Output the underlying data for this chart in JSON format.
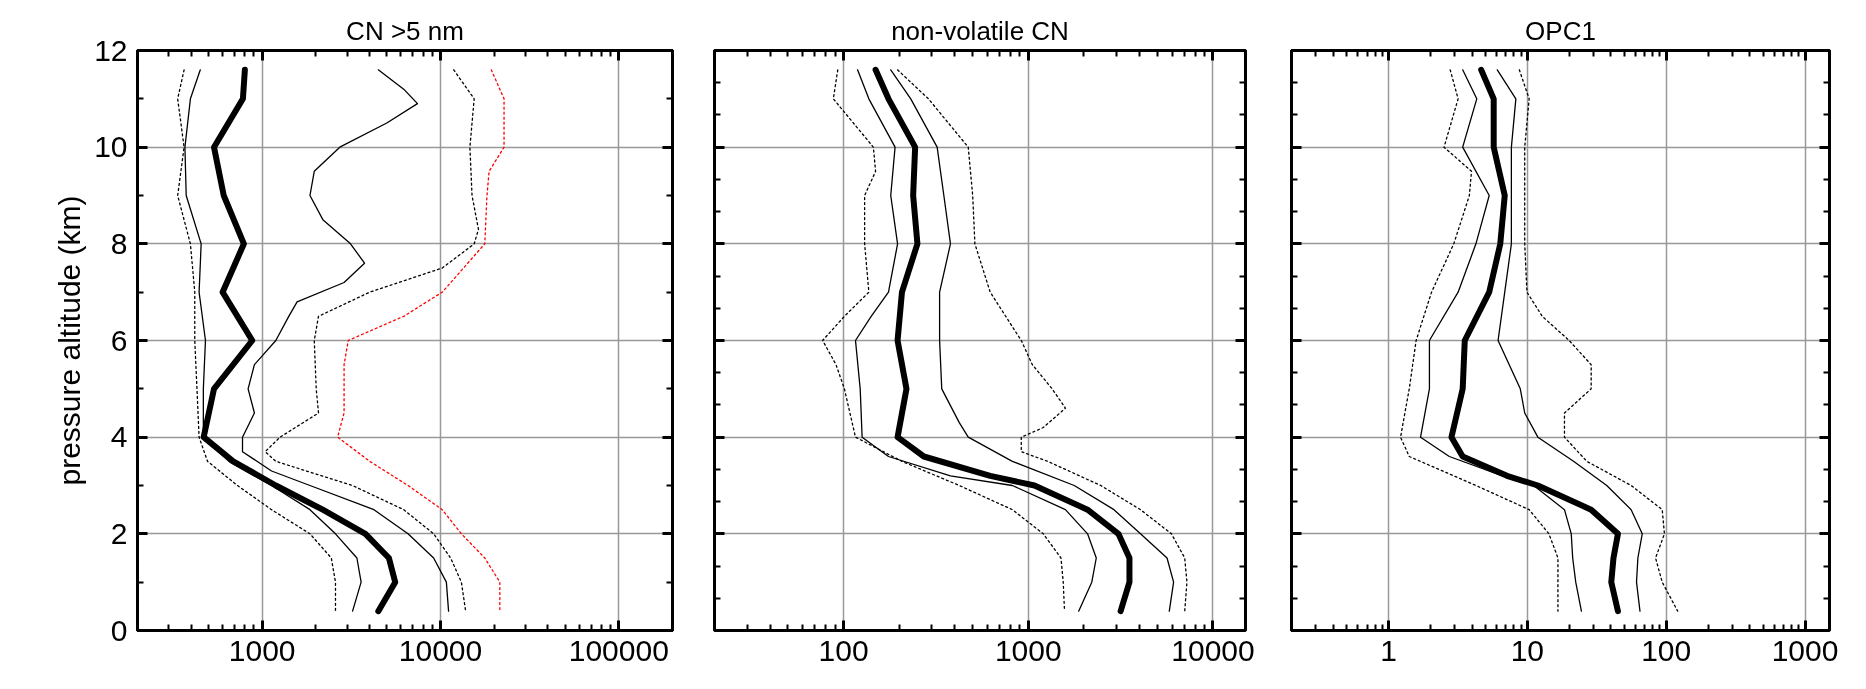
{
  "chart_data": [
    {
      "type": "line",
      "title": "CN >5 nm",
      "ylabel": "pressure altitude (km)",
      "log": "x",
      "xlim": [
        200,
        200000
      ],
      "ylim": [
        0,
        12
      ],
      "xticks": [
        1000,
        10000,
        100000
      ],
      "yticks": [
        0,
        {
          "value": 1,
          "label": null
        },
        2,
        {
          "value": 3,
          "label": null
        },
        4,
        {
          "value": 5,
          "label": null
        },
        6,
        {
          "value": 7,
          "label": null
        },
        8,
        {
          "value": 9,
          "label": null
        },
        10,
        {
          "value": 11,
          "label": null
        },
        12
      ],
      "grid": true,
      "series": [
        {
          "color": "#000000",
          "line_style": "dotted",
          "x": [
            365,
            336,
            365,
            336,
            396,
            419,
            419,
            431,
            443,
            494,
            727,
            1129,
            1854,
            2442,
            2578,
            2578
          ],
          "values": [
            11.6,
            11,
            10,
            9,
            8,
            7,
            6,
            5,
            4,
            3.5,
            3,
            2.5,
            2,
            1.5,
            1,
            0.4
          ]
        },
        {
          "color": "#000000",
          "line_style": "solid",
          "x": [
            450,
            396,
            369,
            375,
            455,
            443,
            481,
            468,
            468,
            651,
            1129,
            1854,
            2578,
            3399,
            3589,
            3214
          ],
          "values": [
            11.6,
            11,
            10,
            9,
            8,
            7,
            6,
            5,
            4,
            3.5,
            3,
            2.5,
            2,
            1.5,
            1,
            0.4
          ]
        },
        {
          "color": "#000000",
          "line_style": "solid",
          "x": [
            800,
            780,
            537,
            609,
            790,
            600,
            880,
            537,
            470,
            688,
            1193,
            2187,
            3793,
            5138,
            5575,
            4480
          ],
          "values": [
            11.6,
            11,
            10,
            9,
            8,
            7,
            6,
            5,
            4,
            3.5,
            3,
            2.5,
            2,
            1.5,
            1,
            0.4
          ]
        },
        {
          "color": "#000000",
          "line_style": "solid",
          "x": [
            4480,
            6220,
            7430,
            5000,
            2725,
            1960,
            1854,
            2190,
            3130,
            3750,
            2880,
            1570,
            1410,
            1193,
            905,
            834,
            905,
            776,
            776,
            1129,
            1854,
            4236,
            6577,
            9156,
            10790,
            11100
          ],
          "values": [
            11.6,
            11.2,
            10.9,
            10.5,
            10,
            9.5,
            9,
            8.5,
            8,
            7.6,
            7.2,
            6.8,
            6.5,
            6,
            5.5,
            5,
            4.5,
            4,
            3.7,
            3.3,
            3,
            2.5,
            2,
            1.5,
            1,
            0.4
          ]
        },
        {
          "color": "#000000",
          "line_style": "dotted",
          "x": [
            11860,
            15450,
            14620,
            15030,
            16330,
            15450,
            10230,
            4010,
            2070,
            1960,
            2010,
            2070,
            1260,
            1040,
            1193,
            3210,
            6220,
            9156,
            11400,
            13100,
            13840
          ],
          "values": [
            11.6,
            11,
            10,
            9,
            8.3,
            8,
            7.5,
            7,
            6.5,
            6,
            5,
            4.5,
            4,
            3.7,
            3.5,
            3,
            2.5,
            2,
            1.5,
            1,
            0.4
          ]
        },
        {
          "color": "#ff0000",
          "line_style": "dotted",
          "x": [
            19270,
            22720,
            22720,
            18740,
            18220,
            17720,
            10230,
            6220,
            3040,
            2880,
            2880,
            2880,
            2650,
            4010,
            6577,
            10230,
            13100,
            17720,
            21520,
            21520
          ],
          "values": [
            11.6,
            11,
            10,
            9.5,
            9,
            8,
            7,
            6.5,
            6,
            5.5,
            5,
            4.5,
            4,
            3.5,
            3,
            2.5,
            2,
            1.5,
            1,
            0.4
          ]
        }
      ]
    },
    {
      "type": "line",
      "title": "non-volatile CN",
      "log": "x",
      "xlim": [
        20,
        15000
      ],
      "ylim": [
        0,
        12
      ],
      "xticks": [
        100,
        1000,
        10000
      ],
      "yticks": [
        0,
        {
          "value": 0.67,
          "label": null
        },
        {
          "value": 1.33,
          "label": null
        },
        2,
        {
          "value": 2.67,
          "label": null
        },
        {
          "value": 3.33,
          "label": null
        },
        4,
        {
          "value": 4.67,
          "label": null
        },
        {
          "value": 5.33,
          "label": null
        },
        6,
        {
          "value": 6.67,
          "label": null
        },
        {
          "value": 7.33,
          "label": null
        },
        8,
        {
          "value": 8.67,
          "label": null
        },
        {
          "value": 9.33,
          "label": null
        },
        10,
        {
          "value": 10.67,
          "label": null
        },
        {
          "value": 11.33,
          "label": null
        },
        12
      ],
      "grid": true,
      "tick_labels": "x",
      "series": [
        {
          "color": "#000000",
          "line_style": "dotted",
          "x": [
            93,
            88,
            145,
            149,
            130,
            130,
            137,
            101,
            77,
            91,
            101,
            116,
            207,
            423,
            820,
            1206,
            1503,
            1546,
            1571
          ],
          "values": [
            11.6,
            11,
            10,
            9.5,
            9,
            8,
            7,
            6.5,
            6,
            5.5,
            5,
            4,
            3.5,
            3,
            2.5,
            2,
            1.5,
            1,
            0.4
          ]
        },
        {
          "color": "#000000",
          "line_style": "solid",
          "x": [
            119,
            137,
            190,
            180,
            196,
            175,
            141,
            116,
            123,
            126,
            175,
            379,
            820,
            1589,
            2094,
            2334,
            2207,
            1874
          ],
          "values": [
            11.6,
            11,
            10,
            9,
            8,
            7,
            6.5,
            6,
            5,
            4,
            3.6,
            3.2,
            3,
            2.5,
            2,
            1.5,
            1,
            0.4
          ]
        },
        {
          "color": "#000000",
          "line_style": "solid",
          "x": [
            149,
            175,
            244,
            238,
            251,
            207,
            196,
            219,
            196,
            272,
            622,
            1080,
            2094,
            3076,
            3530,
            3530,
            3162
          ],
          "values": [
            11.6,
            11,
            10,
            9,
            8,
            7,
            6,
            5,
            4,
            3.6,
            3.2,
            3,
            2.5,
            2,
            1.5,
            1,
            0.4
          ]
        },
        {
          "color": "#000000",
          "line_style": "solid",
          "x": [
            180,
            231,
            321,
            349,
            379,
            331,
            331,
            340,
            423,
            473,
            820,
            1773,
            2910,
            4050,
            5640,
            6120,
            5800
          ],
          "values": [
            11.6,
            11,
            10,
            9,
            8,
            7,
            6,
            5,
            4.3,
            4,
            3.5,
            3,
            2.5,
            2,
            1.5,
            1,
            0.4
          ]
        },
        {
          "color": "#000000",
          "line_style": "dotted",
          "x": [
            196,
            288,
            473,
            500,
            514,
            622,
            916,
            1052,
            1346,
            1589,
            1206,
            916,
            916,
            1274,
            2468,
            4050,
            5960,
            7030,
            7230,
            7030
          ],
          "values": [
            11.6,
            11,
            10,
            9,
            8,
            7,
            6,
            5.5,
            5,
            4.6,
            4.2,
            4,
            3.7,
            3.5,
            3,
            2.5,
            2,
            1.5,
            1,
            0.4
          ]
        }
      ]
    },
    {
      "type": "line",
      "title": "OPC1",
      "log": "x",
      "xlim": [
        0.2,
        1500
      ],
      "ylim": [
        0,
        12
      ],
      "xticks": [
        1,
        10,
        100,
        1000
      ],
      "yticks": [
        0,
        {
          "value": 0.67,
          "label": null
        },
        {
          "value": 1.33,
          "label": null
        },
        2,
        {
          "value": 2.67,
          "label": null
        },
        {
          "value": 3.33,
          "label": null
        },
        4,
        {
          "value": 4.67,
          "label": null
        },
        {
          "value": 5.33,
          "label": null
        },
        6,
        {
          "value": 6.67,
          "label": null
        },
        {
          "value": 7.33,
          "label": null
        },
        8,
        {
          "value": 8.67,
          "label": null
        },
        {
          "value": 9.33,
          "label": null
        },
        10,
        {
          "value": 10.67,
          "label": null
        },
        {
          "value": 11.33,
          "label": null
        },
        12
      ],
      "grid": true,
      "tick_labels": "x",
      "series": [
        {
          "color": "#000000",
          "line_style": "dotted",
          "x": [
            2.78,
            3.17,
            2.51,
            3.96,
            3.82,
            2.95,
            2.04,
            1.58,
            1.41,
            1.22,
            1.41,
            4.26,
            10.3,
            14.3,
            16.6,
            16.6,
            16.6
          ],
          "values": [
            11.6,
            11,
            10,
            9.5,
            9,
            8,
            7,
            6,
            5,
            4,
            3.6,
            3,
            2.5,
            2,
            1.5,
            1,
            0.4
          ]
        },
        {
          "color": "#000000",
          "line_style": "solid",
          "x": [
            3.42,
            4.32,
            3.42,
            5.31,
            4.26,
            3.17,
            1.97,
            1.97,
            1.7,
            2.74,
            6.62,
            11.1,
            18.5,
            20.7,
            21.2,
            22.3,
            24.5
          ],
          "values": [
            11.6,
            11,
            10,
            9,
            8,
            7,
            6,
            5,
            4,
            3.6,
            3.2,
            3,
            2.5,
            2,
            1.5,
            1,
            0.4
          ]
        },
        {
          "color": "#000000",
          "line_style": "solid",
          "x": [
            4.65,
            5.72,
            5.72,
            6.87,
            6.38,
            5.31,
            3.54,
            3.42,
            2.84,
            3.42,
            7.13,
            11.9,
            28.8,
            44.9,
            41.7,
            40.2,
            44.9
          ],
          "values": [
            11.6,
            11,
            10,
            9,
            8,
            7,
            6,
            5,
            4,
            3.6,
            3.2,
            3,
            2.5,
            2,
            1.5,
            1,
            0.4
          ]
        },
        {
          "color": "#000000",
          "line_style": "solid",
          "x": [
            6.07,
            8.26,
            7.67,
            7.67,
            7.67,
            6.87,
            6.15,
            8.89,
            9.57,
            11.9,
            21.5,
            37.3,
            55.9,
            67.2,
            62.5,
            61.1,
            64.7
          ],
          "values": [
            11.6,
            11,
            10,
            9,
            8,
            7,
            6,
            5,
            4.5,
            4,
            3.5,
            3,
            2.5,
            2,
            1.5,
            1,
            0.4
          ]
        },
        {
          "color": "#000000",
          "line_style": "dotted",
          "x": [
            8.75,
            10.3,
            9.57,
            9.57,
            9.57,
            9.93,
            12.8,
            20.0,
            28.8,
            28.8,
            18.5,
            18.5,
            26.8,
            55.9,
            93.6,
            97.1,
            83.8,
            93.6,
            121
          ],
          "values": [
            11.6,
            11,
            10,
            9,
            8,
            7,
            6.5,
            6,
            5.5,
            5,
            4.5,
            4,
            3.5,
            3,
            2.5,
            2,
            1.5,
            1,
            0.4
          ]
        }
      ]
    }
  ]
}
